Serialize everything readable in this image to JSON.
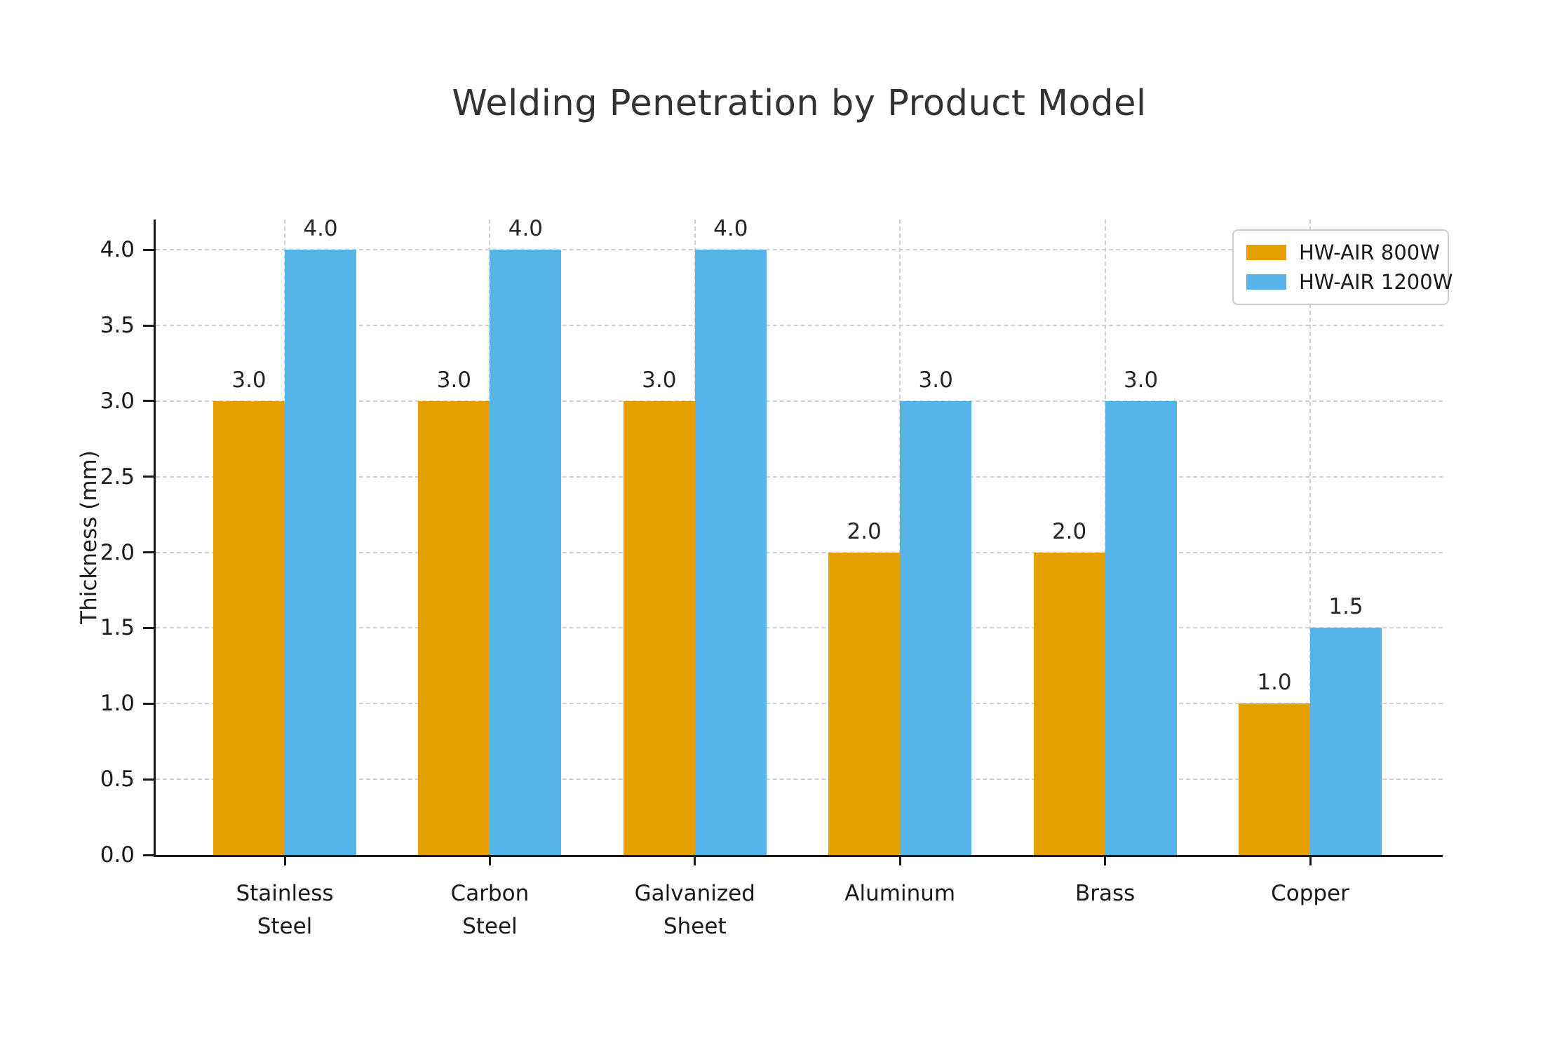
{
  "chart_data": {
    "type": "bar",
    "title": "Welding Penetration by Product Model",
    "xlabel": "",
    "ylabel": "Thickness (mm)",
    "categories": [
      "Stainless\nSteel",
      "Carbon\nSteel",
      "Galvanized\nSheet",
      "Aluminum",
      "Brass",
      "Copper"
    ],
    "series": [
      {
        "name": "HW-AIR 800W",
        "color": "#E69F00",
        "values": [
          3.0,
          3.0,
          3.0,
          2.0,
          2.0,
          1.0
        ]
      },
      {
        "name": "HW-AIR 1200W",
        "color": "#56B4E9",
        "values": [
          4.0,
          4.0,
          4.0,
          3.0,
          3.0,
          1.5
        ]
      }
    ],
    "bar_value_labels": {
      "HW-AIR 800W": [
        "3.0",
        "3.0",
        "3.0",
        "2.0",
        "2.0",
        "1.0"
      ],
      "HW-AIR 1200W": [
        "4.0",
        "4.0",
        "4.0",
        "3.0",
        "3.0",
        "1.5"
      ]
    },
    "ylim": [
      0,
      4.2
    ],
    "yticks": [
      0.0,
      0.5,
      1.0,
      1.5,
      2.0,
      2.5,
      3.0,
      3.5,
      4.0
    ],
    "ytick_labels": [
      "0.0",
      "0.5",
      "1.0",
      "1.5",
      "2.0",
      "2.5",
      "3.0",
      "3.5",
      "4.0"
    ],
    "grid": "on",
    "grid_style": "dashed",
    "legend_position": "upper right",
    "legend_entries": [
      "HW-AIR 800W",
      "HW-AIR 1200W"
    ]
  }
}
